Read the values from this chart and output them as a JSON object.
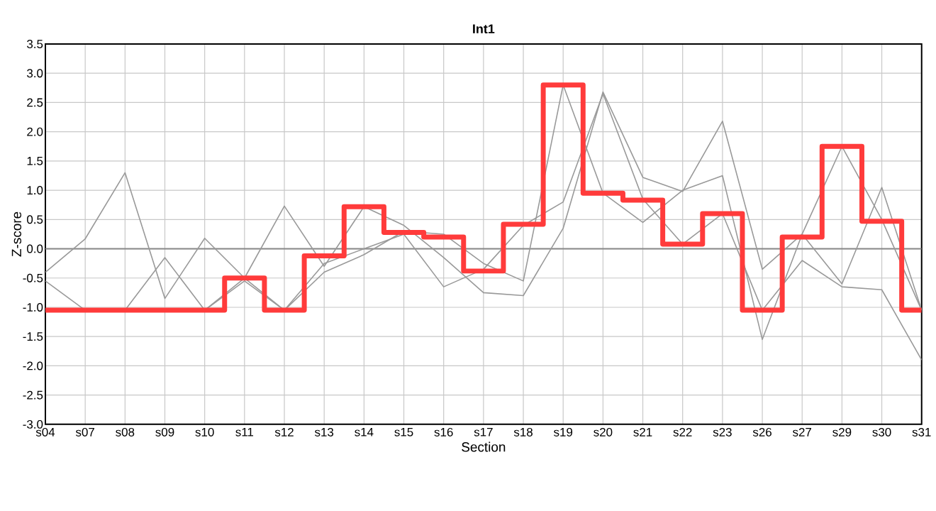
{
  "chart_data": {
    "type": "line",
    "title": "Int1",
    "xlabel": "Section",
    "ylabel": "Z-score",
    "categories": [
      "s04",
      "s07",
      "s08",
      "s09",
      "s10",
      "s11",
      "s12",
      "s13",
      "s14",
      "s15",
      "s16",
      "s17",
      "s18",
      "s19",
      "s20",
      "s21",
      "s22",
      "s23",
      "s26",
      "s27",
      "s29",
      "s30",
      "s31"
    ],
    "series": [
      {
        "color": "#999999",
        "values": [
          -0.4,
          0.17,
          1.3,
          -0.85,
          0.18,
          -0.5,
          0.73,
          -0.3,
          0.72,
          0.4,
          -0.15,
          -0.75,
          -0.8,
          0.35,
          2.68,
          1.22,
          0.98,
          2.18,
          -0.35,
          0.25,
          -0.6,
          1.05,
          -1.05
        ]
      },
      {
        "color": "#999999",
        "values": [
          -0.55,
          -1.05,
          -1.05,
          -0.15,
          -1.05,
          -0.5,
          -1.05,
          -0.4,
          -0.1,
          0.3,
          0.25,
          -0.25,
          -0.55,
          2.8,
          0.95,
          0.45,
          1.0,
          1.25,
          -1.55,
          0.25,
          1.75,
          0.5,
          -1.05
        ]
      },
      {
        "color": "#999999",
        "values": [
          -1.05,
          -1.05,
          -1.05,
          -1.05,
          -1.05,
          -0.55,
          -1.05,
          -0.25,
          0.0,
          0.25,
          -0.65,
          -0.35,
          0.4,
          0.8,
          2.65,
          0.85,
          0.08,
          0.6,
          -1.05,
          -0.2,
          -0.65,
          -0.7,
          -1.9
        ]
      },
      {
        "type": "step",
        "color": "#ff3b3b",
        "values": [
          -1.05,
          -1.05,
          -1.05,
          -1.05,
          -1.05,
          -0.5,
          -1.05,
          -0.12,
          0.72,
          0.28,
          0.2,
          -0.38,
          0.42,
          2.8,
          0.95,
          0.83,
          0.08,
          0.6,
          -1.05,
          0.2,
          1.75,
          0.47,
          -1.05
        ]
      }
    ],
    "ylim": [
      -3,
      3.5
    ],
    "yticks": [
      {
        "value": -3,
        "label": "-3.0"
      },
      {
        "value": -2.5,
        "label": "-2.5"
      },
      {
        "value": -2,
        "label": "-2.0"
      },
      {
        "value": -1.5,
        "label": "-1.5"
      },
      {
        "value": -1,
        "label": "-1.0"
      },
      {
        "value": -0.5,
        "label": "-0.5"
      },
      {
        "value": 0,
        "label": "0.0"
      },
      {
        "value": 0.5,
        "label": "0.5"
      },
      {
        "value": 1,
        "label": "1.0"
      },
      {
        "value": 1.5,
        "label": "1.5"
      },
      {
        "value": 2,
        "label": "2.0"
      },
      {
        "value": 2.5,
        "label": "2.5"
      },
      {
        "value": 3,
        "label": "3.0"
      },
      {
        "value": 3.5,
        "label": "3.5"
      }
    ],
    "grid": true,
    "ref_lines": [
      {
        "axis": "y",
        "value": 0,
        "color": "#888888"
      }
    ],
    "marker": "none"
  }
}
